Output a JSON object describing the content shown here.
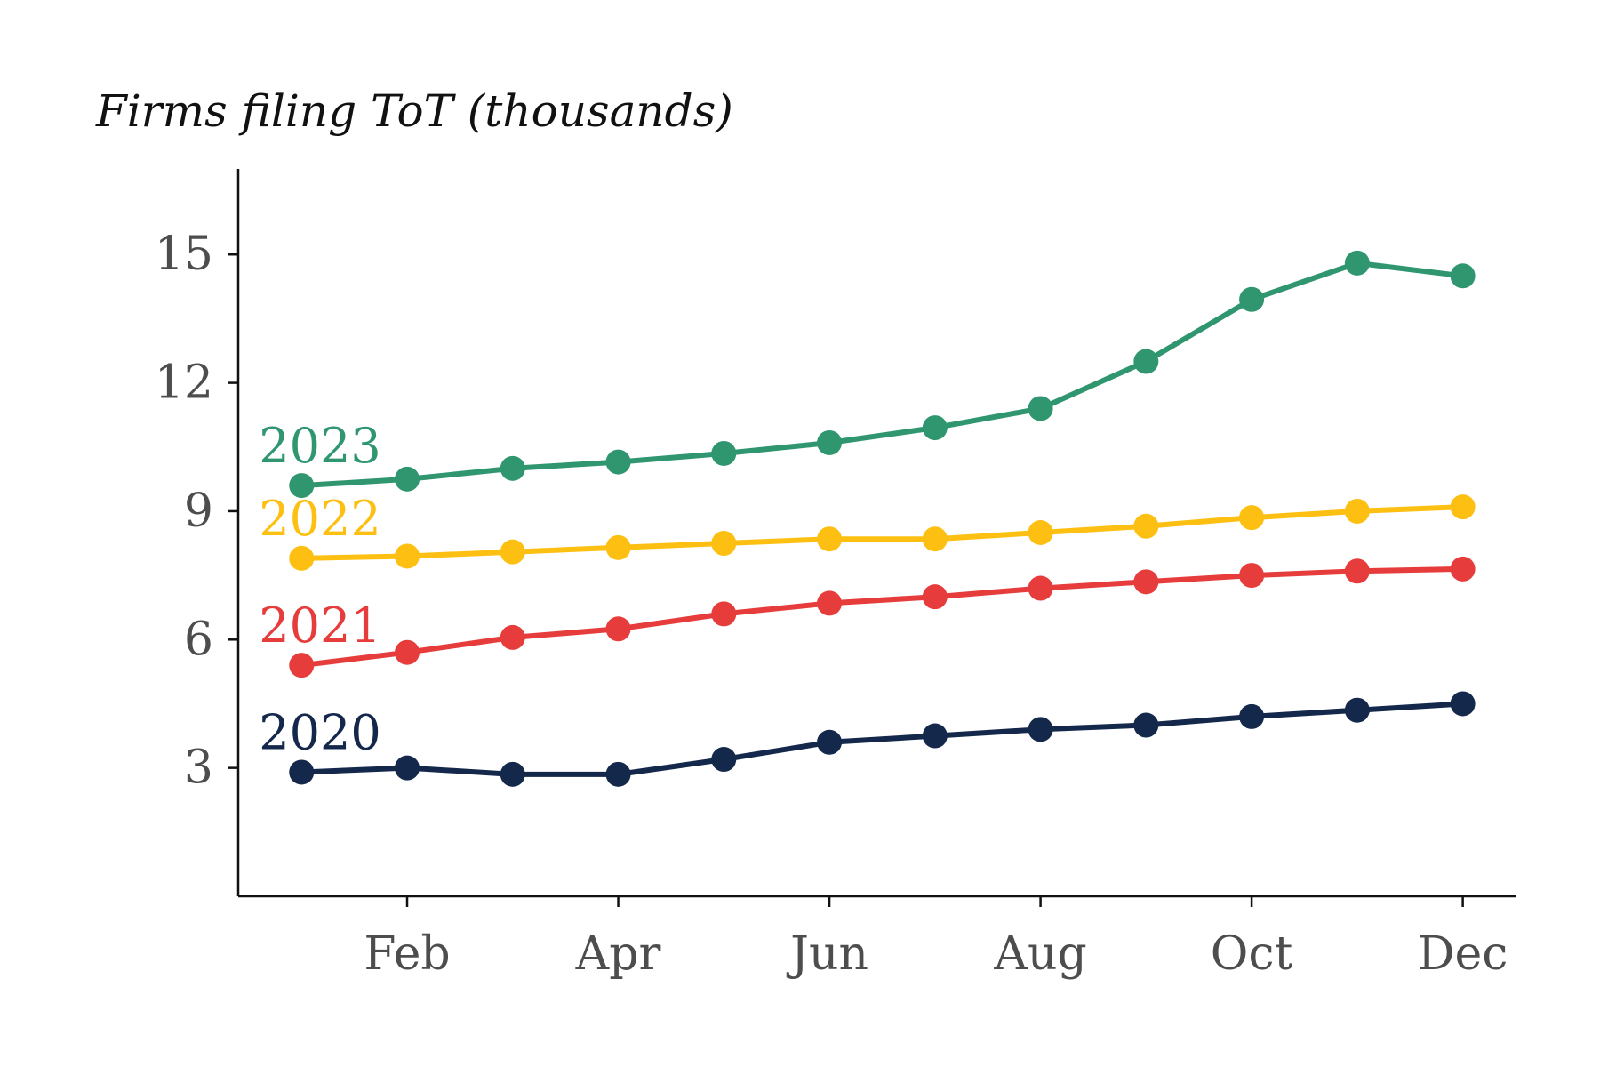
{
  "chart_data": {
    "type": "line",
    "title": "",
    "ylabel": "Firms filing ToT (thousands)",
    "xlabel": "",
    "x": [
      1,
      2,
      3,
      4,
      5,
      6,
      7,
      8,
      9,
      10,
      11,
      12
    ],
    "x_ticks": [
      2,
      4,
      6,
      8,
      10,
      12
    ],
    "x_tick_labels": [
      "Feb",
      "Apr",
      "Jun",
      "Aug",
      "Oct",
      "Dec"
    ],
    "xlim": [
      0.4,
      12.5
    ],
    "ylim": [
      0,
      17
    ],
    "y_ticks": [
      3,
      6,
      9,
      12,
      15
    ],
    "grid": false,
    "legend": "none (direct labels at series start)",
    "series": [
      {
        "name": "2020",
        "color": "#14284b",
        "values": [
          2.9,
          3.0,
          2.85,
          2.85,
          3.2,
          3.6,
          3.75,
          3.9,
          4.0,
          4.2,
          4.35,
          4.5
        ]
      },
      {
        "name": "2021",
        "color": "#e63c3c",
        "values": [
          5.4,
          5.7,
          6.05,
          6.25,
          6.6,
          6.85,
          7.0,
          7.2,
          7.35,
          7.5,
          7.6,
          7.65
        ]
      },
      {
        "name": "2022",
        "color": "#fcbf12",
        "values": [
          7.9,
          7.95,
          8.05,
          8.15,
          8.25,
          8.35,
          8.35,
          8.5,
          8.65,
          8.85,
          9.0,
          9.1
        ]
      },
      {
        "name": "2023",
        "color": "#2f9670",
        "values": [
          9.6,
          9.75,
          10.0,
          10.15,
          10.35,
          10.6,
          10.95,
          11.4,
          12.5,
          13.95,
          14.8,
          14.5
        ]
      }
    ]
  }
}
